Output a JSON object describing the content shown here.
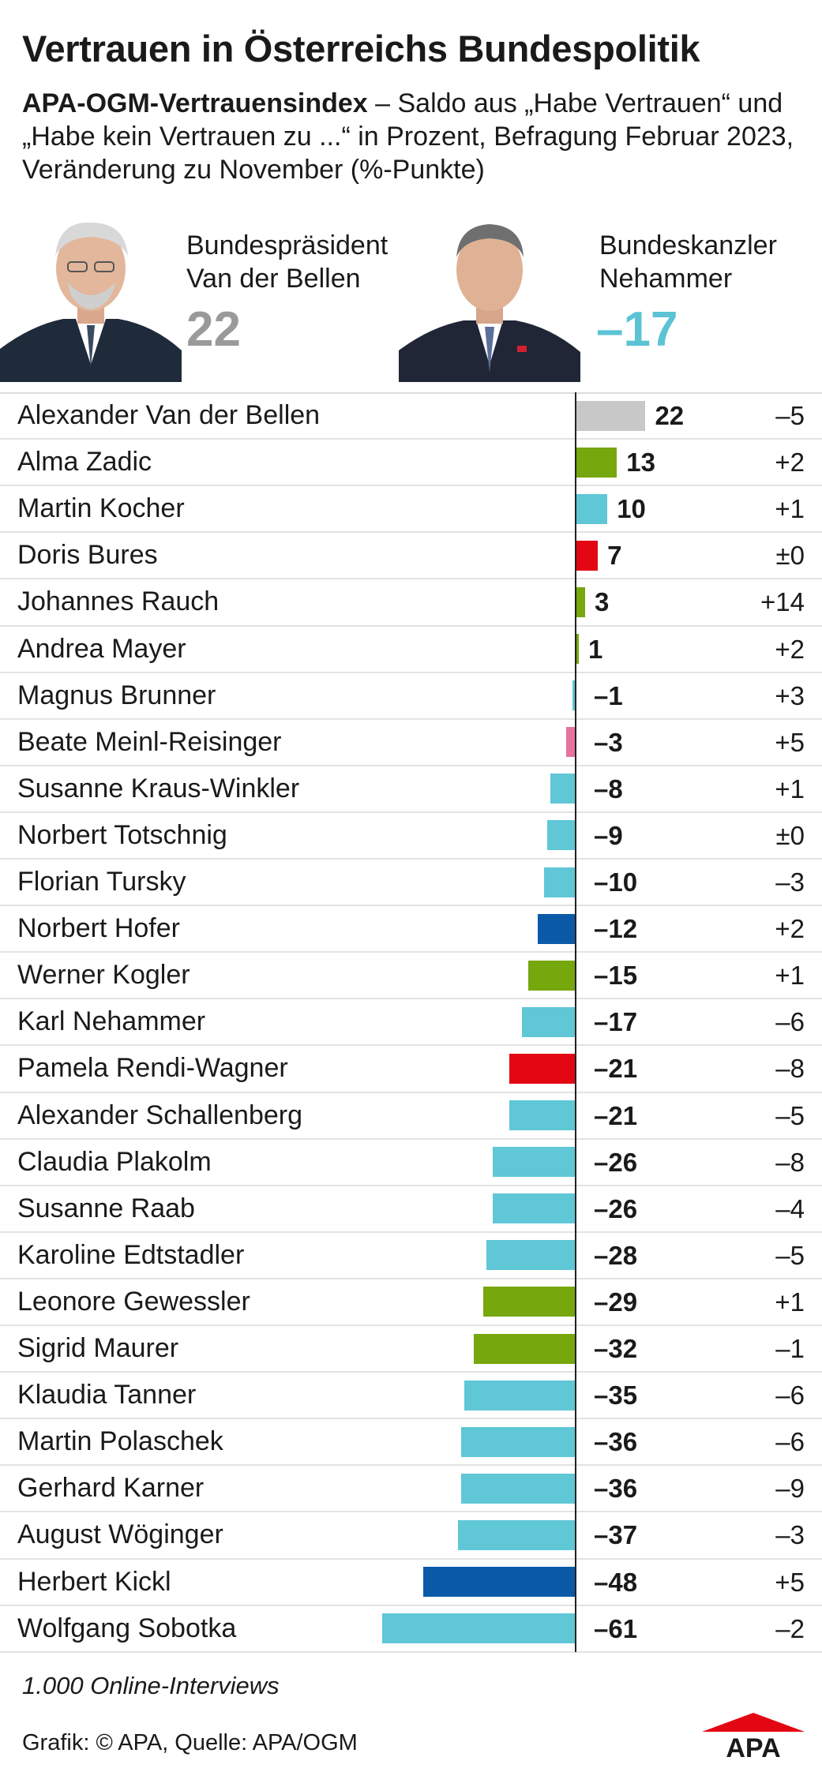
{
  "title": "Vertrauen in Österreichs Bundespolitik",
  "subtitle": {
    "bold": "APA-OGM-Vertrauensindex",
    "rest": " – Saldo aus „Habe Vertrauen“ und „Habe kein Vertrauen zu ...“ in Prozent, Befragung Februar 2023, Veränderung zu November (%-Punkte)"
  },
  "highlights": [
    {
      "line1": "Bundespräsident",
      "line2": "Van der Bellen",
      "value": "22",
      "color": "#9a9a9a"
    },
    {
      "line1": "Bundeskanzler",
      "line2": "Nehammer",
      "value": "–17",
      "color": "#5bc3d4"
    }
  ],
  "colors": {
    "grey": "#c8c8c8",
    "green": "#76a70d",
    "turquoise": "#5fc7d6",
    "red": "#e30613",
    "pink": "#e8729f",
    "blue": "#0a5aa8"
  },
  "chart_data": {
    "type": "bar",
    "orientation": "horizontal",
    "xlim": [
      -61,
      22
    ],
    "categories": [
      "Alexander Van der Bellen",
      "Alma Zadic",
      "Martin Kocher",
      "Doris Bures",
      "Johannes Rauch",
      "Andrea Mayer",
      "Magnus Brunner",
      "Beate Meinl-Reisinger",
      "Susanne Kraus-Winkler",
      "Norbert Totschnig",
      "Florian Tursky",
      "Norbert Hofer",
      "Werner Kogler",
      "Karl Nehammer",
      "Pamela Rendi-Wagner",
      "Alexander Schallenberg",
      "Claudia Plakolm",
      "Susanne Raab",
      "Karoline Edtstadler",
      "Leonore Gewessler",
      "Sigrid Maurer",
      "Klaudia Tanner",
      "Martin Polaschek",
      "Gerhard Karner",
      "August Wöginger",
      "Herbert Kickl",
      "Wolfgang Sobotka"
    ],
    "values": [
      22,
      13,
      10,
      7,
      3,
      1,
      -1,
      -3,
      -8,
      -9,
      -10,
      -12,
      -15,
      -17,
      -21,
      -21,
      -26,
      -26,
      -28,
      -29,
      -32,
      -35,
      -36,
      -36,
      -37,
      -48,
      -61
    ],
    "value_labels": [
      "22",
      "13",
      "10",
      "7",
      "3",
      "1",
      "–1",
      "–3",
      "–8",
      "–9",
      "–10",
      "–12",
      "–15",
      "–17",
      "–21",
      "–21",
      "–26",
      "–26",
      "–28",
      "–29",
      "–32",
      "–35",
      "–36",
      "–36",
      "–37",
      "–48",
      "–61"
    ],
    "changes": [
      "–5",
      "+2",
      "+1",
      "±0",
      "+14",
      "+2",
      "+3",
      "+5",
      "+1",
      "±0",
      "–3",
      "+2",
      "+1",
      "–6",
      "–8",
      "–5",
      "–8",
      "–4",
      "–5",
      "+1",
      "–1",
      "–6",
      "–6",
      "–9",
      "–3",
      "+5",
      "–2"
    ],
    "bar_colors": [
      "grey",
      "green",
      "turquoise",
      "red",
      "green",
      "green",
      "turquoise",
      "pink",
      "turquoise",
      "turquoise",
      "turquoise",
      "blue",
      "green",
      "turquoise",
      "red",
      "turquoise",
      "turquoise",
      "turquoise",
      "turquoise",
      "green",
      "green",
      "turquoise",
      "turquoise",
      "turquoise",
      "turquoise",
      "blue",
      "turquoise"
    ]
  },
  "footnote": "1.000 Online-Interviews",
  "source": "Grafik: © APA, Quelle: APA/OGM",
  "logo_text": "APA"
}
